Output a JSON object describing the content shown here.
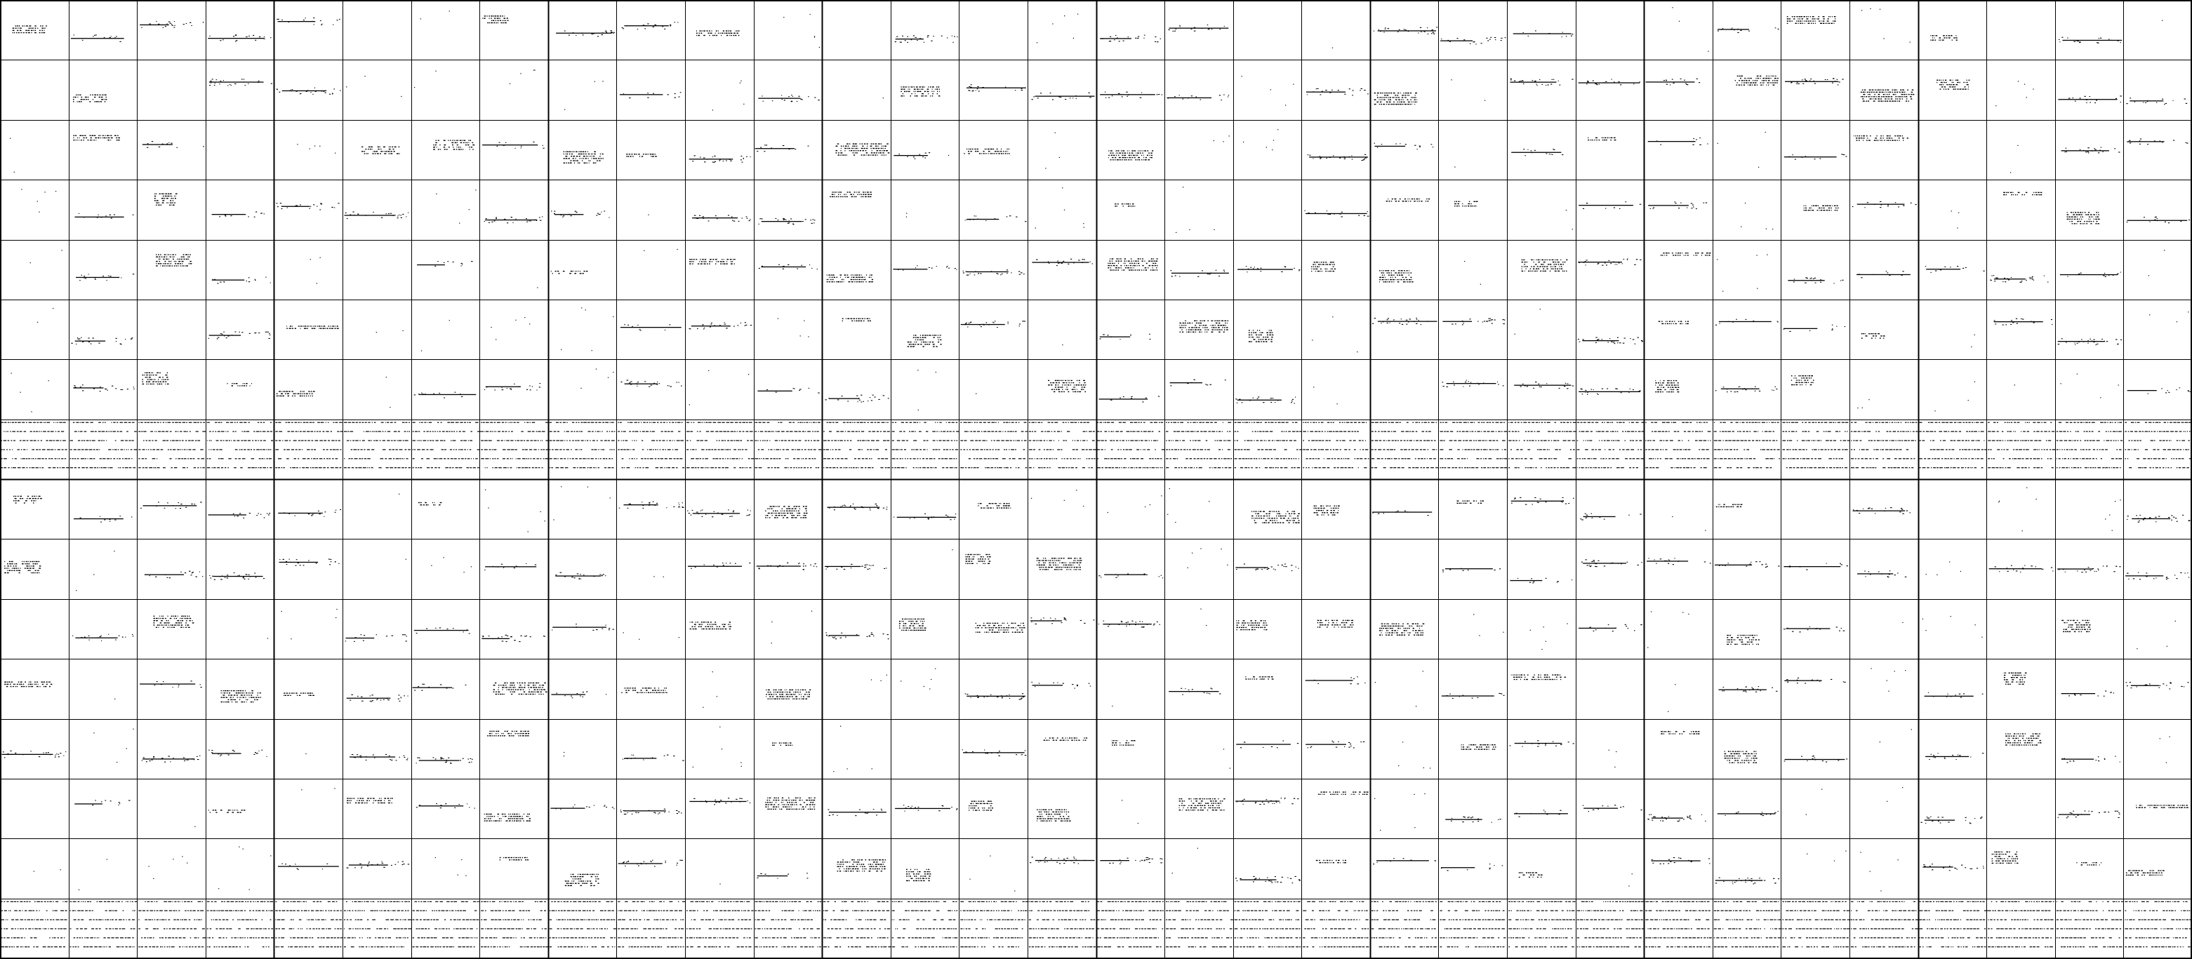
{
  "palette": {
    "background": "#ffffff",
    "grid_line": "#000000",
    "ink": "#000000"
  },
  "sheet": {
    "panels": 2,
    "columns_per_panel": 32,
    "rows_per_panel": 8,
    "column_group_size": 4,
    "row_group_size": 8,
    "printed_text": []
  }
}
